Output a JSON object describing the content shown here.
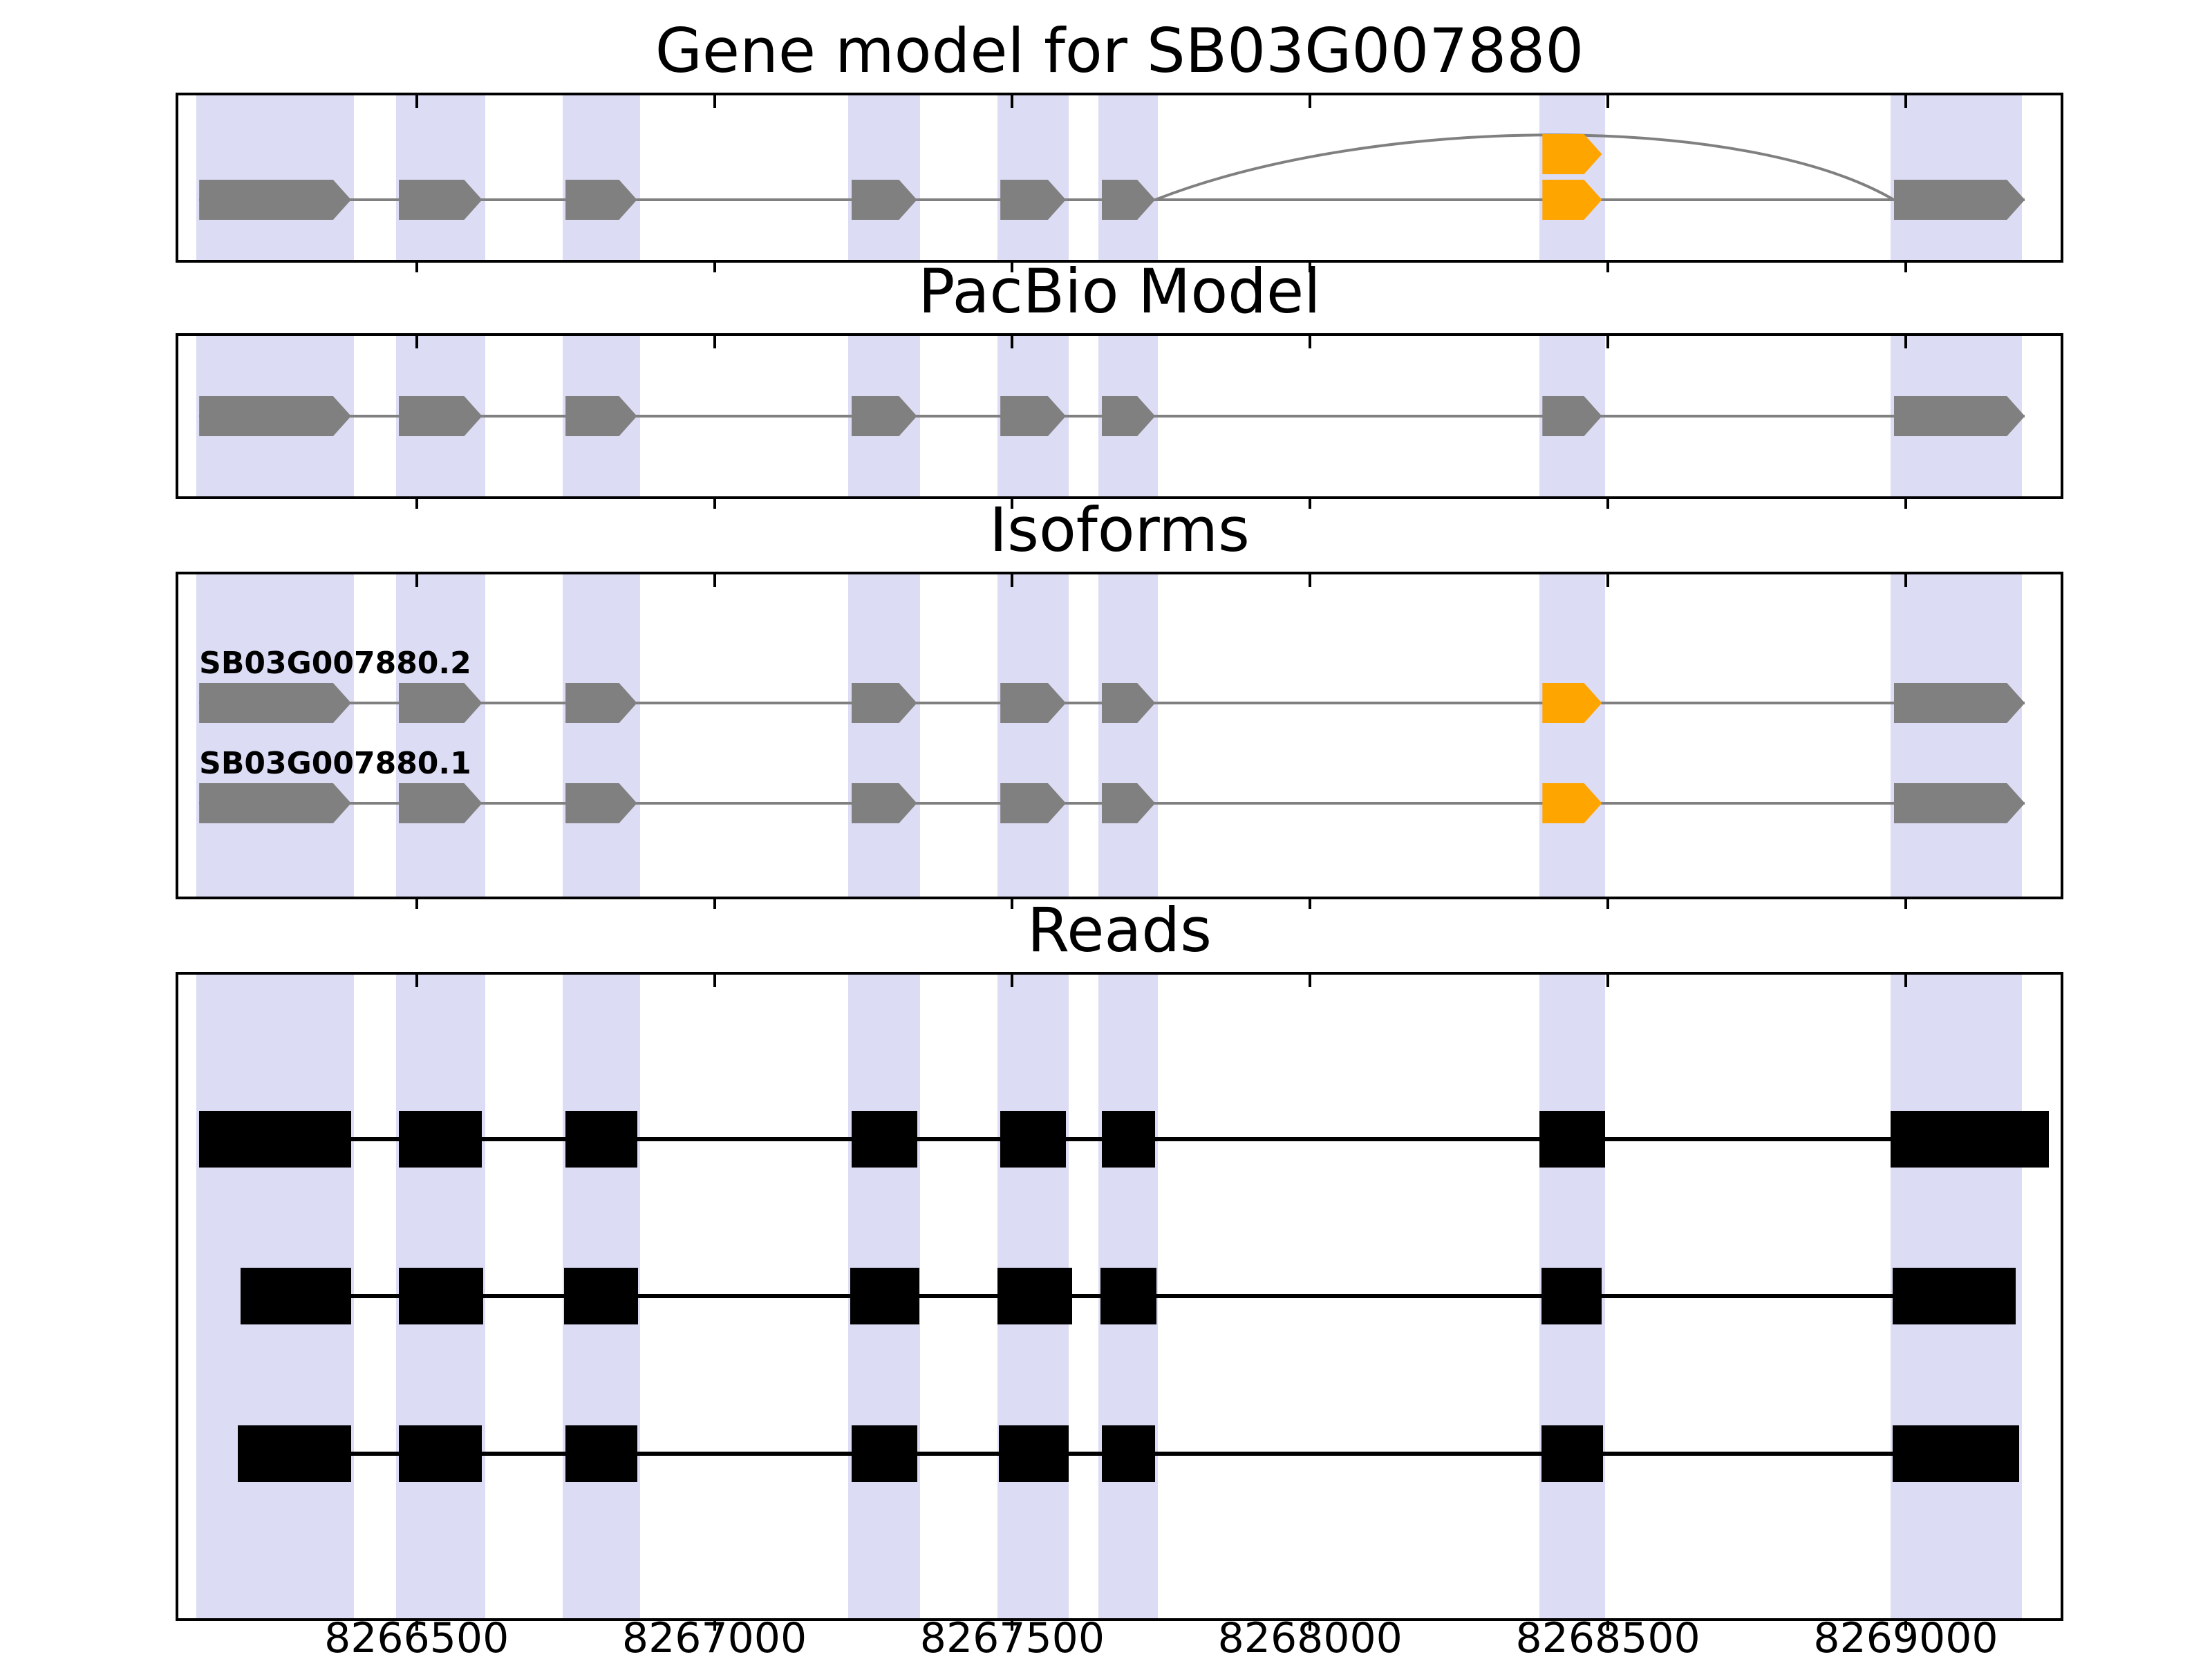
{
  "figure": {
    "background": "#ffffff",
    "colors": {
      "exon_gray": "#808080",
      "exon_orange": "#FFA500",
      "band": "#dcdcf4",
      "read": "#000000",
      "connector": "#808080",
      "axis": "#000000"
    }
  },
  "chart_data": {
    "type": "genome-tracks",
    "x_range": [
      8266100,
      8269260
    ],
    "x_ticks": [
      {
        "value": 8266500,
        "label": "8266500"
      },
      {
        "value": 8267000,
        "label": "8267000"
      },
      {
        "value": 8267500,
        "label": "8267500"
      },
      {
        "value": 8268000,
        "label": "8268000"
      },
      {
        "value": 8268500,
        "label": "8268500"
      },
      {
        "value": 8269000,
        "label": "8269000"
      }
    ],
    "highlight_regions": [
      [
        8266130,
        8266395
      ],
      [
        8266465,
        8266615
      ],
      [
        8266745,
        8266875
      ],
      [
        8267225,
        8267345
      ],
      [
        8267475,
        8267595
      ],
      [
        8267645,
        8267745
      ],
      [
        8268385,
        8268495
      ],
      [
        8268975,
        8269195
      ]
    ],
    "panels": [
      {
        "title": "Gene model for SB03G007880",
        "type": "model",
        "tracks": [
          {
            "label": "",
            "exons": [
              {
                "start": 8266135,
                "end": 8266390,
                "color": "gray"
              },
              {
                "start": 8266470,
                "end": 8266610,
                "color": "gray"
              },
              {
                "start": 8266750,
                "end": 8266870,
                "color": "gray"
              },
              {
                "start": 8267230,
                "end": 8267340,
                "color": "gray"
              },
              {
                "start": 8267480,
                "end": 8267590,
                "color": "gray"
              },
              {
                "start": 8267650,
                "end": 8267740,
                "color": "gray"
              },
              {
                "start": 8268390,
                "end": 8268490,
                "color": "orange"
              },
              {
                "start": 8268980,
                "end": 8269200,
                "color": "gray"
              }
            ],
            "extra_exons": [
              {
                "start": 8268390,
                "end": 8268490,
                "color": "orange",
                "row_offset": -66
              }
            ],
            "arcs": [
              {
                "from": 8267740,
                "to": 8268980
              }
            ]
          }
        ]
      },
      {
        "title": "PacBio Model",
        "type": "model",
        "tracks": [
          {
            "label": "",
            "exons": [
              {
                "start": 8266135,
                "end": 8266390,
                "color": "gray"
              },
              {
                "start": 8266470,
                "end": 8266610,
                "color": "gray"
              },
              {
                "start": 8266750,
                "end": 8266870,
                "color": "gray"
              },
              {
                "start": 8267230,
                "end": 8267340,
                "color": "gray"
              },
              {
                "start": 8267480,
                "end": 8267590,
                "color": "gray"
              },
              {
                "start": 8267650,
                "end": 8267740,
                "color": "gray"
              },
              {
                "start": 8268390,
                "end": 8268490,
                "color": "gray"
              },
              {
                "start": 8268980,
                "end": 8269200,
                "color": "gray"
              }
            ]
          }
        ]
      },
      {
        "title": "Isoforms",
        "type": "model",
        "tracks": [
          {
            "label": "SB03G007880.2",
            "exons": [
              {
                "start": 8266135,
                "end": 8266390,
                "color": "gray"
              },
              {
                "start": 8266470,
                "end": 8266610,
                "color": "gray"
              },
              {
                "start": 8266750,
                "end": 8266870,
                "color": "gray"
              },
              {
                "start": 8267230,
                "end": 8267340,
                "color": "gray"
              },
              {
                "start": 8267480,
                "end": 8267590,
                "color": "gray"
              },
              {
                "start": 8267650,
                "end": 8267740,
                "color": "gray"
              },
              {
                "start": 8268390,
                "end": 8268490,
                "color": "orange"
              },
              {
                "start": 8268980,
                "end": 8269200,
                "color": "gray"
              }
            ]
          },
          {
            "label": "SB03G007880.1",
            "exons": [
              {
                "start": 8266135,
                "end": 8266390,
                "color": "gray"
              },
              {
                "start": 8266470,
                "end": 8266610,
                "color": "gray"
              },
              {
                "start": 8266750,
                "end": 8266870,
                "color": "gray"
              },
              {
                "start": 8267230,
                "end": 8267340,
                "color": "gray"
              },
              {
                "start": 8267480,
                "end": 8267590,
                "color": "gray"
              },
              {
                "start": 8267650,
                "end": 8267740,
                "color": "gray"
              },
              {
                "start": 8268390,
                "end": 8268490,
                "color": "orange"
              },
              {
                "start": 8268980,
                "end": 8269200,
                "color": "gray"
              }
            ]
          }
        ]
      },
      {
        "title": "Reads",
        "type": "reads",
        "tracks": [
          {
            "segments": [
              [
                8266135,
                8266390
              ],
              [
                8266470,
                8266610
              ],
              [
                8266750,
                8266870
              ],
              [
                8267230,
                8267340
              ],
              [
                8267480,
                8267590
              ],
              [
                8267650,
                8267740
              ],
              [
                8268385,
                8268495
              ],
              [
                8268975,
                8269240
              ]
            ]
          },
          {
            "segments": [
              [
                8266205,
                8266390
              ],
              [
                8266470,
                8266612
              ],
              [
                8266748,
                8266872
              ],
              [
                8267228,
                8267344
              ],
              [
                8267475,
                8267600
              ],
              [
                8267648,
                8267742
              ],
              [
                8268388,
                8268490
              ],
              [
                8268978,
                8269185
              ]
            ]
          },
          {
            "segments": [
              [
                8266200,
                8266390
              ],
              [
                8266470,
                8266610
              ],
              [
                8266750,
                8266870
              ],
              [
                8267230,
                8267340
              ],
              [
                8267478,
                8267595
              ],
              [
                8267650,
                8267740
              ],
              [
                8268388,
                8268492
              ],
              [
                8268978,
                8269190
              ]
            ]
          }
        ]
      }
    ]
  }
}
